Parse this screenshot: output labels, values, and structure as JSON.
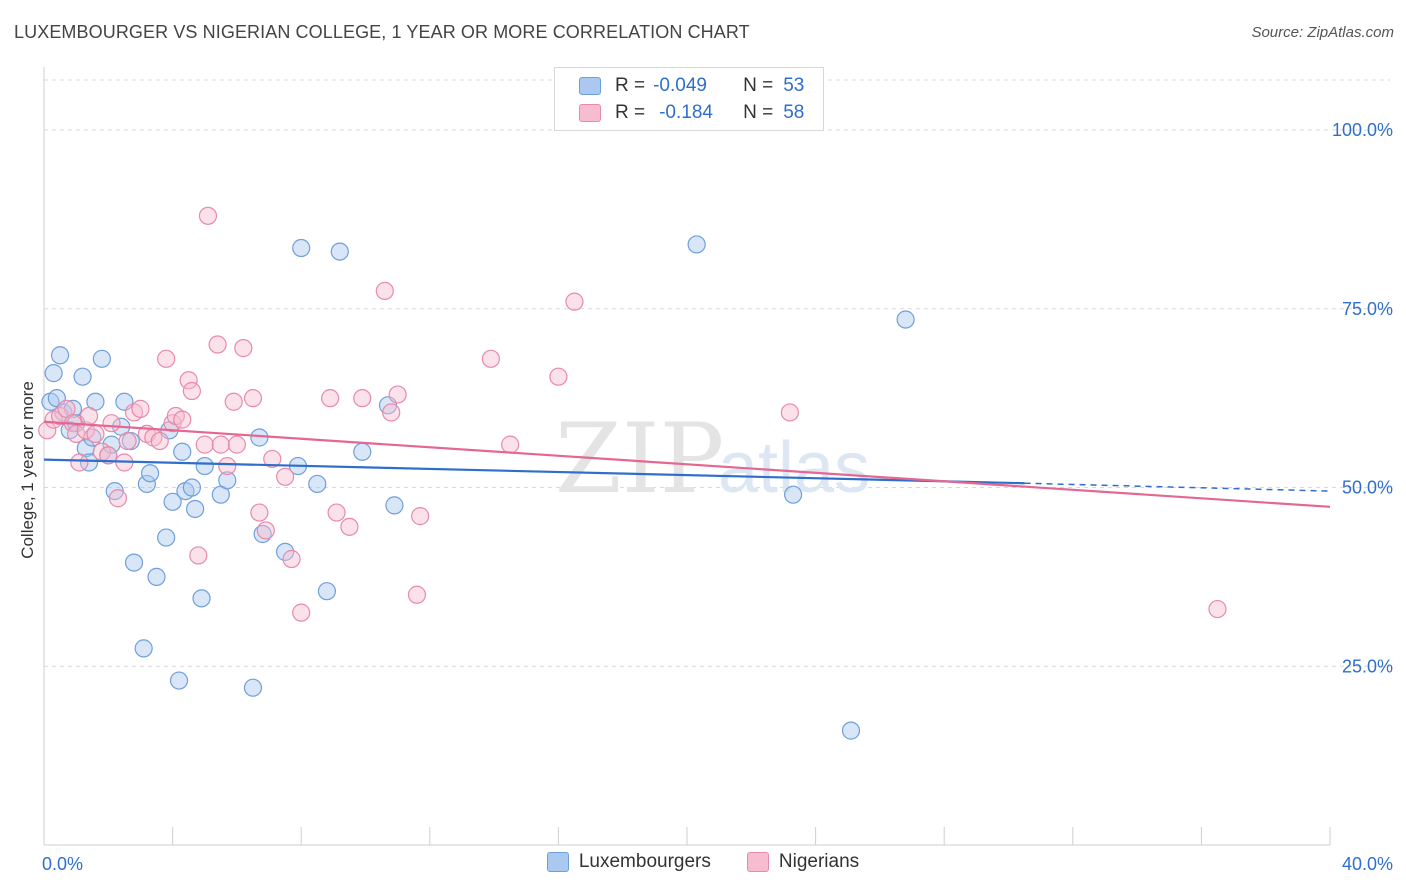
{
  "title": "LUXEMBOURGER VS NIGERIAN COLLEGE, 1 YEAR OR MORE CORRELATION CHART",
  "source": "Source: ZipAtlas.com",
  "watermark": {
    "zip": "ZIP",
    "atlas": "atlas"
  },
  "legend_top": {
    "lux": {
      "r_label": "R =",
      "r_value": "-0.049",
      "n_label": "N =",
      "n_value": "53"
    },
    "nig": {
      "r_label": "R =",
      "r_value": "-0.184",
      "n_label": "N =",
      "n_value": "58"
    }
  },
  "colors": {
    "lux_fill": "#aac8f0",
    "lux_stroke": "#6f9fdc",
    "lux_line": "#2f6fcb",
    "nig_fill": "#f7bccf",
    "nig_stroke": "#e88aaa",
    "nig_line": "#e46792",
    "axis_text": "#2f6fcb",
    "grid": "#d9d9d9"
  },
  "chart_data": {
    "type": "scatter",
    "title": "LUXEMBOURGER VS NIGERIAN COLLEGE, 1 YEAR OR MORE CORRELATION CHART",
    "xlabel": "",
    "ylabel": "College, 1 year or more",
    "xlim": [
      0,
      40
    ],
    "ylim": [
      0,
      107
    ],
    "x_tick_labels": [
      {
        "value": 0,
        "label": "0.0%"
      },
      {
        "value": 40,
        "label": "40.0%"
      }
    ],
    "y_tick_labels": [
      {
        "value": 25,
        "label": "25.0%"
      },
      {
        "value": 50,
        "label": "50.0%"
      },
      {
        "value": 75,
        "label": "75.0%"
      },
      {
        "value": 100,
        "label": "100.0%"
      }
    ],
    "legend_position": "bottom-center",
    "series": [
      {
        "name": "Luxembourgers",
        "r": -0.049,
        "n": 53,
        "trend": {
          "x": [
            0,
            30.5
          ],
          "y": [
            53.9,
            50.6
          ],
          "dashed_to": [
            40,
            49.5
          ]
        },
        "points": [
          [
            0.2,
            62.0
          ],
          [
            0.3,
            66.0
          ],
          [
            0.4,
            62.5
          ],
          [
            0.5,
            68.5
          ],
          [
            0.6,
            60.5
          ],
          [
            0.8,
            58.0
          ],
          [
            0.9,
            61.0
          ],
          [
            1.0,
            59.0
          ],
          [
            1.2,
            65.5
          ],
          [
            1.3,
            55.5
          ],
          [
            1.4,
            53.5
          ],
          [
            1.5,
            57.0
          ],
          [
            1.6,
            62.0
          ],
          [
            1.8,
            68.0
          ],
          [
            2.0,
            54.5
          ],
          [
            2.1,
            56.0
          ],
          [
            2.2,
            49.5
          ],
          [
            2.4,
            58.5
          ],
          [
            2.5,
            62.0
          ],
          [
            2.7,
            56.5
          ],
          [
            2.8,
            39.5
          ],
          [
            3.1,
            27.5
          ],
          [
            3.2,
            50.5
          ],
          [
            3.3,
            52.0
          ],
          [
            3.5,
            37.5
          ],
          [
            3.8,
            43.0
          ],
          [
            3.9,
            58.0
          ],
          [
            4.0,
            48.0
          ],
          [
            4.2,
            23.0
          ],
          [
            4.3,
            55.0
          ],
          [
            4.4,
            49.5
          ],
          [
            4.6,
            50.0
          ],
          [
            4.7,
            47.0
          ],
          [
            4.9,
            34.5
          ],
          [
            5.0,
            53.0
          ],
          [
            5.5,
            49.0
          ],
          [
            5.7,
            51.0
          ],
          [
            6.5,
            22.0
          ],
          [
            6.7,
            57.0
          ],
          [
            6.8,
            43.5
          ],
          [
            7.5,
            41.0
          ],
          [
            7.9,
            53.0
          ],
          [
            8.0,
            83.5
          ],
          [
            8.5,
            50.5
          ],
          [
            8.8,
            35.5
          ],
          [
            9.2,
            83.0
          ],
          [
            9.9,
            55.0
          ],
          [
            10.7,
            61.5
          ],
          [
            10.9,
            47.5
          ],
          [
            20.3,
            84.0
          ],
          [
            23.3,
            49.0
          ],
          [
            25.1,
            16.0
          ],
          [
            26.8,
            73.5
          ]
        ]
      },
      {
        "name": "Nigerians",
        "r": -0.184,
        "n": 58,
        "trend": {
          "x": [
            0,
            40
          ],
          "y": [
            59.2,
            47.3
          ]
        },
        "points": [
          [
            0.1,
            58.0
          ],
          [
            0.3,
            59.5
          ],
          [
            0.5,
            60.0
          ],
          [
            0.7,
            61.0
          ],
          [
            0.9,
            59.0
          ],
          [
            1.0,
            57.5
          ],
          [
            1.1,
            53.5
          ],
          [
            1.3,
            58.0
          ],
          [
            1.4,
            60.0
          ],
          [
            1.6,
            57.5
          ],
          [
            1.8,
            55.0
          ],
          [
            2.0,
            54.5
          ],
          [
            2.1,
            59.0
          ],
          [
            2.3,
            48.5
          ],
          [
            2.5,
            53.5
          ],
          [
            2.6,
            56.5
          ],
          [
            2.8,
            60.5
          ],
          [
            3.0,
            61.0
          ],
          [
            3.2,
            57.5
          ],
          [
            3.4,
            57.0
          ],
          [
            3.6,
            56.5
          ],
          [
            3.8,
            68.0
          ],
          [
            4.0,
            59.0
          ],
          [
            4.1,
            60.0
          ],
          [
            4.3,
            59.5
          ],
          [
            4.5,
            65.0
          ],
          [
            4.6,
            63.5
          ],
          [
            4.8,
            40.5
          ],
          [
            5.0,
            56.0
          ],
          [
            5.1,
            88.0
          ],
          [
            5.4,
            70.0
          ],
          [
            5.5,
            56.0
          ],
          [
            5.7,
            53.0
          ],
          [
            5.9,
            62.0
          ],
          [
            6.0,
            56.0
          ],
          [
            6.2,
            69.5
          ],
          [
            6.5,
            62.5
          ],
          [
            6.7,
            46.5
          ],
          [
            6.9,
            44.0
          ],
          [
            7.1,
            54.0
          ],
          [
            7.5,
            51.5
          ],
          [
            7.7,
            40.0
          ],
          [
            8.0,
            32.5
          ],
          [
            8.9,
            62.5
          ],
          [
            9.1,
            46.5
          ],
          [
            9.5,
            44.5
          ],
          [
            9.9,
            62.5
          ],
          [
            10.6,
            77.5
          ],
          [
            10.8,
            60.5
          ],
          [
            11.0,
            63.0
          ],
          [
            11.6,
            35.0
          ],
          [
            11.7,
            46.0
          ],
          [
            13.9,
            68.0
          ],
          [
            14.5,
            56.0
          ],
          [
            16.0,
            65.5
          ],
          [
            16.5,
            76.0
          ],
          [
            23.2,
            60.5
          ],
          [
            36.5,
            33.0
          ]
        ]
      }
    ]
  }
}
